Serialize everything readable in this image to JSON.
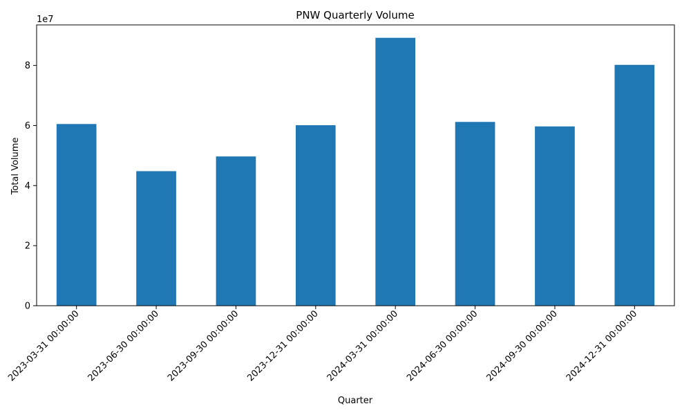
{
  "chart_data": {
    "type": "bar",
    "title": "PNW Quarterly Volume",
    "xlabel": "Quarter",
    "ylabel": "Total Volume",
    "y_multiplier_label": "1e7",
    "categories": [
      "2023-03-31 00:00:00",
      "2023-06-30 00:00:00",
      "2023-09-30 00:00:00",
      "2023-12-31 00:00:00",
      "2024-03-31 00:00:00",
      "2024-06-30 00:00:00",
      "2024-09-30 00:00:00",
      "2024-12-31 00:00:00"
    ],
    "values": [
      60500000,
      44800000,
      49700000,
      60100000,
      89200000,
      61200000,
      59700000,
      80200000
    ],
    "ylim": [
      0,
      93500000
    ],
    "yticks": [
      0,
      20000000,
      40000000,
      60000000,
      80000000
    ],
    "ytick_labels": [
      "0",
      "2",
      "4",
      "6",
      "8"
    ],
    "bar_color": "#1f77b4",
    "grid": false,
    "legend": "none"
  }
}
